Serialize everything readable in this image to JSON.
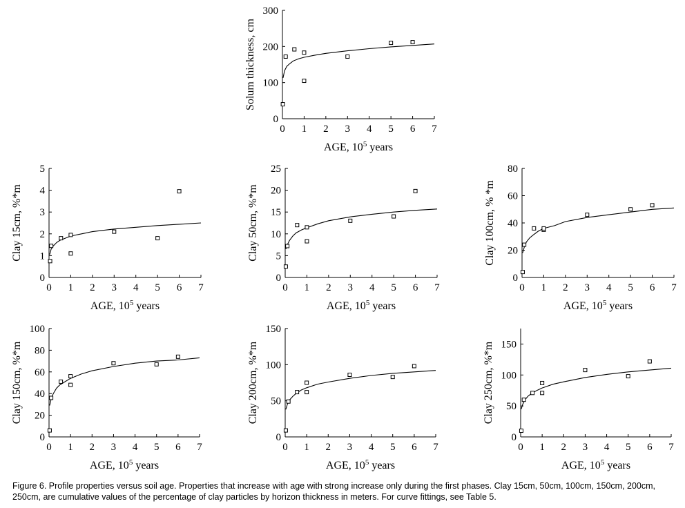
{
  "figure": {
    "caption": "Figure 6. Profile properties versus soil age. Properties that increase with age with strong increase only during the first phases. Clay 15cm, 50cm, 100cm, 150cm, 200cm, 250cm, are cumulative values of the percentage of clay particles by horizon thickness in meters. For curve fittings, see Table 5."
  },
  "chart_data": [
    {
      "type": "scatter",
      "ylabel": "Solum thickness,  cm",
      "xlabel_base": "AGE, 10",
      "xlabel_sup": "5",
      "xlabel_tail": " years",
      "xlim": [
        0,
        7
      ],
      "xticks": [
        0,
        1,
        2,
        3,
        4,
        5,
        6,
        7
      ],
      "ylim": [
        0,
        300
      ],
      "yticks": [
        0,
        100,
        200,
        300
      ],
      "points": [
        [
          0.02,
          40
        ],
        [
          0.15,
          172
        ],
        [
          0.55,
          192
        ],
        [
          1.0,
          183
        ],
        [
          1.0,
          105
        ],
        [
          3.0,
          172
        ],
        [
          5.0,
          210
        ],
        [
          6.0,
          212
        ]
      ],
      "fit": [
        [
          0.03,
          113
        ],
        [
          0.1,
          133
        ],
        [
          0.2,
          145
        ],
        [
          0.35,
          153
        ],
        [
          0.5,
          160
        ],
        [
          0.75,
          166
        ],
        [
          1.0,
          170
        ],
        [
          1.5,
          176
        ],
        [
          2.0,
          181
        ],
        [
          3.0,
          188
        ],
        [
          4.0,
          194
        ],
        [
          5.0,
          199
        ],
        [
          6.0,
          203
        ],
        [
          7.0,
          207
        ]
      ]
    },
    {
      "type": "scatter",
      "ylabel": "Clay 15cm,  %*m",
      "xlabel_base": "AGE, 10",
      "xlabel_sup": "5",
      "xlabel_tail": " years",
      "xlim": [
        0,
        7
      ],
      "xticks": [
        0,
        1,
        2,
        3,
        4,
        5,
        6,
        7
      ],
      "ylim": [
        0,
        5
      ],
      "yticks": [
        0,
        1,
        2,
        3,
        4,
        5
      ],
      "points": [
        [
          0.05,
          0.75
        ],
        [
          0.1,
          1.45
        ],
        [
          0.55,
          1.8
        ],
        [
          1.0,
          1.95
        ],
        [
          1.0,
          1.1
        ],
        [
          3.0,
          2.1
        ],
        [
          5.0,
          1.8
        ],
        [
          6.0,
          3.95
        ]
      ],
      "fit": [
        [
          0.03,
          1.05
        ],
        [
          0.1,
          1.3
        ],
        [
          0.2,
          1.45
        ],
        [
          0.35,
          1.6
        ],
        [
          0.5,
          1.7
        ],
        [
          0.75,
          1.8
        ],
        [
          1.0,
          1.9
        ],
        [
          1.5,
          2.0
        ],
        [
          2.0,
          2.1
        ],
        [
          3.0,
          2.22
        ],
        [
          4.0,
          2.3
        ],
        [
          5.0,
          2.38
        ],
        [
          6.0,
          2.44
        ],
        [
          7.0,
          2.5
        ]
      ]
    },
    {
      "type": "scatter",
      "ylabel": "Clay 50cm,  %*m",
      "xlabel_base": "AGE, 10",
      "xlabel_sup": "5",
      "xlabel_tail": " years",
      "xlim": [
        0,
        7
      ],
      "xticks": [
        0,
        1,
        2,
        3,
        4,
        5,
        6,
        7
      ],
      "ylim": [
        0,
        25
      ],
      "yticks": [
        0,
        5,
        10,
        15,
        20,
        25
      ],
      "points": [
        [
          0.03,
          2.5
        ],
        [
          0.1,
          7.2
        ],
        [
          0.55,
          12.0
        ],
        [
          1.0,
          11.5
        ],
        [
          1.0,
          8.3
        ],
        [
          3.0,
          13.0
        ],
        [
          5.0,
          14.0
        ],
        [
          6.0,
          19.8
        ]
      ],
      "fit": [
        [
          0.03,
          6.5
        ],
        [
          0.1,
          7.5
        ],
        [
          0.2,
          8.5
        ],
        [
          0.35,
          9.5
        ],
        [
          0.5,
          10.2
        ],
        [
          0.75,
          10.9
        ],
        [
          1.0,
          11.4
        ],
        [
          1.5,
          12.3
        ],
        [
          2.0,
          13.0
        ],
        [
          3.0,
          13.9
        ],
        [
          4.0,
          14.5
        ],
        [
          5.0,
          15.0
        ],
        [
          6.0,
          15.4
        ],
        [
          7.0,
          15.7
        ]
      ]
    },
    {
      "type": "scatter",
      "ylabel": "Clay 100cm,  % *m",
      "xlabel_base": "AGE, 10",
      "xlabel_sup": "5",
      "xlabel_tail": " years",
      "xlim": [
        0,
        7
      ],
      "xticks": [
        0,
        1,
        2,
        3,
        4,
        5,
        6,
        7
      ],
      "ylim": [
        0,
        80
      ],
      "yticks": [
        0,
        20,
        40,
        60,
        80
      ],
      "points": [
        [
          0.03,
          4
        ],
        [
          0.1,
          24
        ],
        [
          0.55,
          36
        ],
        [
          1.0,
          35
        ],
        [
          1.0,
          36
        ],
        [
          3.0,
          46
        ],
        [
          5.0,
          50
        ],
        [
          6.0,
          53
        ]
      ],
      "fit": [
        [
          0.03,
          18
        ],
        [
          0.1,
          22
        ],
        [
          0.2,
          26
        ],
        [
          0.35,
          29
        ],
        [
          0.5,
          31
        ],
        [
          0.75,
          34
        ],
        [
          1.0,
          36
        ],
        [
          1.5,
          38
        ],
        [
          2.0,
          41
        ],
        [
          3.0,
          44
        ],
        [
          4.0,
          46
        ],
        [
          5.0,
          48
        ],
        [
          6.0,
          50
        ],
        [
          7.0,
          51
        ]
      ]
    },
    {
      "type": "scatter",
      "ylabel": "Clay 150cm,  %*m",
      "xlabel_base": "AGE, 10",
      "xlabel_sup": "5",
      "xlabel_tail": " years",
      "xlim": [
        0,
        7
      ],
      "xticks": [
        0,
        1,
        2,
        3,
        4,
        5,
        6,
        7
      ],
      "ylim": [
        0,
        100
      ],
      "yticks": [
        0,
        20,
        40,
        60,
        80,
        100
      ],
      "points": [
        [
          0.03,
          6
        ],
        [
          0.1,
          36
        ],
        [
          0.55,
          51
        ],
        [
          1.0,
          56
        ],
        [
          1.0,
          48
        ],
        [
          3.0,
          68
        ],
        [
          5.0,
          67
        ],
        [
          6.0,
          74
        ]
      ],
      "fit": [
        [
          0.03,
          29
        ],
        [
          0.1,
          35
        ],
        [
          0.2,
          40
        ],
        [
          0.35,
          45
        ],
        [
          0.5,
          48
        ],
        [
          0.75,
          51
        ],
        [
          1.0,
          54
        ],
        [
          1.5,
          58
        ],
        [
          2.0,
          61
        ],
        [
          3.0,
          65
        ],
        [
          4.0,
          68
        ],
        [
          5.0,
          70
        ],
        [
          6.0,
          71
        ],
        [
          7.0,
          73
        ]
      ]
    },
    {
      "type": "scatter",
      "ylabel": "Clay 200cm,  %*m",
      "xlabel_base": "AGE, 10",
      "xlabel_sup": "5",
      "xlabel_tail": " years",
      "xlim": [
        0,
        7
      ],
      "xticks": [
        0,
        1,
        2,
        3,
        4,
        5,
        6,
        7
      ],
      "ylim": [
        0,
        150
      ],
      "yticks": [
        0,
        50,
        100,
        150
      ],
      "points": [
        [
          0.03,
          9
        ],
        [
          0.15,
          49
        ],
        [
          0.55,
          62
        ],
        [
          1.0,
          75
        ],
        [
          1.0,
          62
        ],
        [
          3.0,
          86
        ],
        [
          5.0,
          83
        ],
        [
          6.0,
          98
        ]
      ],
      "fit": [
        [
          0.03,
          38
        ],
        [
          0.1,
          45
        ],
        [
          0.2,
          51
        ],
        [
          0.35,
          56
        ],
        [
          0.5,
          60
        ],
        [
          0.75,
          65
        ],
        [
          1.0,
          68
        ],
        [
          1.5,
          73
        ],
        [
          2.0,
          76
        ],
        [
          3.0,
          81
        ],
        [
          4.0,
          85
        ],
        [
          5.0,
          88
        ],
        [
          6.0,
          90
        ],
        [
          7.0,
          92
        ]
      ]
    },
    {
      "type": "scatter",
      "ylabel": "Clay 250cm,  %*m",
      "xlabel_base": "AGE, 10",
      "xlabel_sup": "5",
      "xlabel_tail": " years",
      "xlim": [
        0,
        7
      ],
      "xticks": [
        0,
        1,
        2,
        3,
        4,
        5,
        6,
        7
      ],
      "ylim": [
        0,
        175
      ],
      "yticks": [
        0,
        50,
        100,
        150
      ],
      "points": [
        [
          0.03,
          10
        ],
        [
          0.15,
          60
        ],
        [
          0.55,
          71
        ],
        [
          1.0,
          87
        ],
        [
          1.0,
          71
        ],
        [
          3.0,
          108
        ],
        [
          5.0,
          98
        ],
        [
          6.0,
          122
        ]
      ],
      "fit": [
        [
          0.03,
          45
        ],
        [
          0.1,
          53
        ],
        [
          0.2,
          60
        ],
        [
          0.35,
          66
        ],
        [
          0.5,
          70
        ],
        [
          0.75,
          75
        ],
        [
          1.0,
          79
        ],
        [
          1.5,
          85
        ],
        [
          2.0,
          89
        ],
        [
          3.0,
          96
        ],
        [
          4.0,
          101
        ],
        [
          5.0,
          105
        ],
        [
          6.0,
          108
        ],
        [
          7.0,
          111
        ]
      ]
    }
  ]
}
